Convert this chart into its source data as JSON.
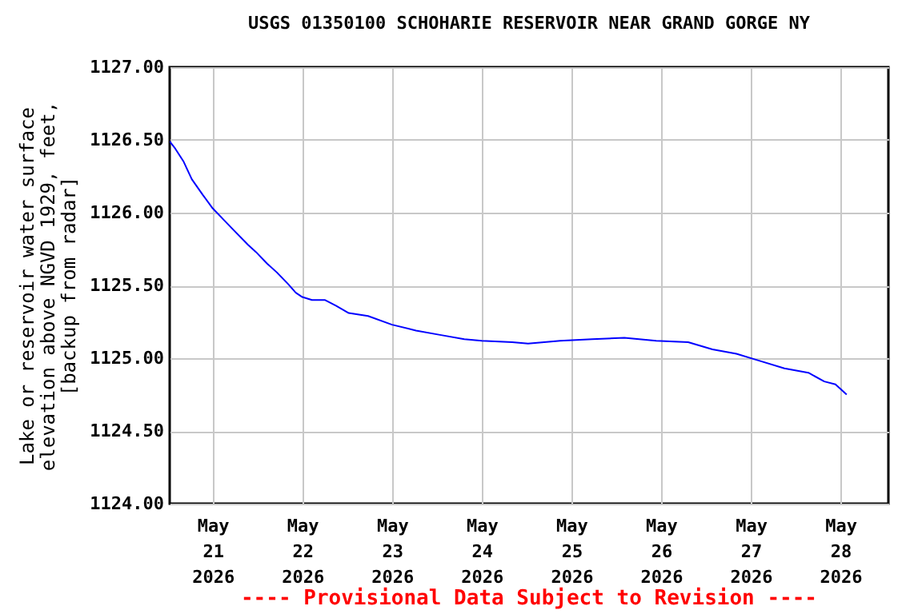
{
  "chart_data": {
    "type": "line",
    "title": "USGS 01350100 SCHOHARIE RESERVOIR NEAR GRAND GORGE NY",
    "ylabel": "Lake or reservoir water surface elevation above NGVD 1929, feet, [backup from radar]",
    "annotations": [
      "---- Provisional Data Subject to Revision ----"
    ],
    "x": [
      "2026-05-20T12:30",
      "2026-05-20T14:00",
      "2026-05-20T16:15",
      "2026-05-20T18:25",
      "2026-05-20T21:25",
      "2026-05-21T00:00",
      "2026-05-21T03:00",
      "2026-05-21T06:00",
      "2026-05-21T09:25",
      "2026-05-21T11:35",
      "2026-05-21T14:35",
      "2026-05-21T17:10",
      "2026-05-21T20:10",
      "2026-05-21T22:15",
      "2026-05-22T00:00",
      "2026-05-22T02:35",
      "2026-05-22T06:00",
      "2026-05-22T09:00",
      "2026-05-22T12:25",
      "2026-05-22T17:35",
      "2026-05-23T00:00",
      "2026-05-23T06:25",
      "2026-05-23T12:50",
      "2026-05-23T19:20",
      "2026-05-24T00:00",
      "2026-05-24T08:10",
      "2026-05-24T12:25",
      "2026-05-24T21:00",
      "2026-05-25T05:35",
      "2026-05-25T14:10",
      "2026-05-25T22:40",
      "2026-05-26T07:15",
      "2026-05-26T13:45",
      "2026-05-26T20:10",
      "2026-05-27T02:35",
      "2026-05-27T09:00",
      "2026-05-27T15:25",
      "2026-05-27T19:40",
      "2026-05-27T22:40",
      "2026-05-28T01:40"
    ],
    "series": [
      {
        "color": "#0000ff",
        "values": [
          1126.49,
          1126.44,
          1126.35,
          1126.23,
          1126.12,
          1126.03,
          1125.95,
          1125.87,
          1125.78,
          1125.73,
          1125.65,
          1125.59,
          1125.51,
          1125.45,
          1125.42,
          1125.4,
          1125.4,
          1125.36,
          1125.31,
          1125.29,
          1125.23,
          1125.19,
          1125.16,
          1125.13,
          1125.12,
          1125.11,
          1125.1,
          1125.12,
          1125.13,
          1125.14,
          1125.12,
          1125.11,
          1125.06,
          1125.03,
          1124.98,
          1124.93,
          1124.9,
          1124.84,
          1124.82,
          1124.75
        ]
      }
    ],
    "xlim": [
      "2026-05-20T12:30",
      "2026-05-28T12:50"
    ],
    "xticks": [
      {
        "value": "2026-05-21",
        "label": "May 21 2026"
      },
      {
        "value": "2026-05-22",
        "label": "May 22 2026"
      },
      {
        "value": "2026-05-23",
        "label": "May 23 2026"
      },
      {
        "value": "2026-05-24",
        "label": "May 24 2026"
      },
      {
        "value": "2026-05-25",
        "label": "May 25 2026"
      },
      {
        "value": "2026-05-26",
        "label": "May 26 2026"
      },
      {
        "value": "2026-05-27",
        "label": "May 27 2026"
      },
      {
        "value": "2026-05-28",
        "label": "May 28 2026"
      }
    ],
    "ylim": [
      1124,
      1127
    ],
    "yticks": [
      {
        "value": 1124,
        "label": "1124.00"
      },
      {
        "value": 1124.5,
        "label": "1124.50"
      },
      {
        "value": 1125,
        "label": "1125.00"
      },
      {
        "value": 1125.5,
        "label": "1125.50"
      },
      {
        "value": 1126,
        "label": "1126.00"
      },
      {
        "value": 1126.5,
        "label": "1126.50"
      },
      {
        "value": 1127,
        "label": "1127.00"
      }
    ],
    "grid": true
  }
}
